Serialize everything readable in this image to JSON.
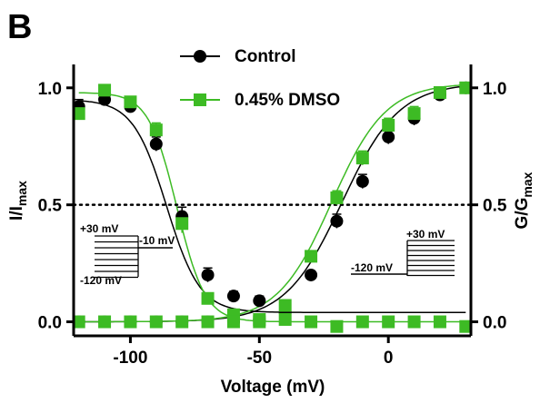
{
  "panel_label": "B",
  "chart_data": {
    "type": "scatter",
    "xlabel": "Voltage (mV)",
    "ylabel_left": {
      "main": "I/I",
      "sub": "max"
    },
    "ylabel_right": {
      "main": "G/G",
      "sub": "max"
    },
    "xlim": [
      -122,
      32
    ],
    "ylim": [
      -0.06,
      1.1
    ],
    "x_ticks": [
      -100,
      -50,
      0
    ],
    "y_ticks": [
      0.0,
      0.5,
      1.0
    ],
    "x_tick_labels": [
      "-100",
      "-50",
      "0"
    ],
    "y_tick_labels": [
      "0.0",
      "0.5",
      "1.0"
    ],
    "reference_line": {
      "y": 0.5,
      "style": "dotted"
    },
    "legend": {
      "position": "top-center"
    },
    "series": [
      {
        "name": "Control",
        "color": "#000000",
        "marker": "circle",
        "inactivation": {
          "x": [
            -120,
            -110,
            -100,
            -90,
            -80,
            -70,
            -60,
            -50
          ],
          "y": [
            0.92,
            0.95,
            0.92,
            0.76,
            0.45,
            0.2,
            0.11,
            0.09
          ],
          "err": [
            0.03,
            0.02,
            0.02,
            0.03,
            0.04,
            0.03,
            0.02,
            0.02
          ]
        },
        "activation": {
          "x": [
            -120,
            -110,
            -100,
            -90,
            -80,
            -70,
            -60,
            -50,
            -40,
            -30,
            -20,
            -10,
            0,
            10,
            20,
            30
          ],
          "y": [
            0.0,
            0.0,
            0.0,
            0.0,
            0.0,
            0.0,
            0.0,
            0.01,
            0.04,
            0.2,
            0.43,
            0.6,
            0.79,
            0.87,
            0.97,
            1.0
          ],
          "err": [
            0.01,
            0.01,
            0.01,
            0.01,
            0.01,
            0.01,
            0.01,
            0.01,
            0.01,
            0.01,
            0.03,
            0.03,
            0.03,
            0.03,
            0.02,
            0.01
          ]
        }
      },
      {
        "name": "0.45% DMSO",
        "color": "#3dbb24",
        "marker": "square",
        "inactivation": {
          "x": [
            -120,
            -110,
            -100,
            -90,
            -80,
            -70,
            -60,
            -50,
            -40,
            -30,
            -20,
            -10,
            0,
            10,
            20,
            30
          ],
          "y": [
            0.89,
            0.99,
            0.94,
            0.82,
            0.42,
            0.1,
            0.03,
            0.01,
            0.01,
            0.0,
            -0.02,
            0.0,
            0.0,
            0.0,
            0.0,
            -0.02
          ],
          "err": [
            0.02,
            0.02,
            0.02,
            0.03,
            0.04,
            0.02,
            0.01,
            0.01,
            0.01,
            0.01,
            0.01,
            0.01,
            0.01,
            0.01,
            0.01,
            0.01
          ]
        },
        "activation": {
          "x": [
            -120,
            -110,
            -100,
            -90,
            -80,
            -70,
            -60,
            -50,
            -40,
            -30,
            -20,
            -10,
            0,
            10,
            20,
            30
          ],
          "y": [
            0.0,
            0.0,
            0.0,
            0.0,
            0.0,
            0.0,
            0.0,
            0.0,
            0.07,
            0.28,
            0.53,
            0.7,
            0.84,
            0.89,
            0.98,
            1.0
          ],
          "err": [
            0.01,
            0.01,
            0.01,
            0.01,
            0.01,
            0.01,
            0.01,
            0.01,
            0.01,
            0.02,
            0.03,
            0.03,
            0.03,
            0.03,
            0.02,
            0.01
          ]
        }
      }
    ],
    "insets": [
      {
        "name": "inactivation-protocol",
        "labels": [
          "+30 mV",
          "-10 mV",
          "-120 mV"
        ]
      },
      {
        "name": "activation-protocol",
        "labels": [
          "+30 mV",
          "-120 mV"
        ]
      }
    ]
  }
}
